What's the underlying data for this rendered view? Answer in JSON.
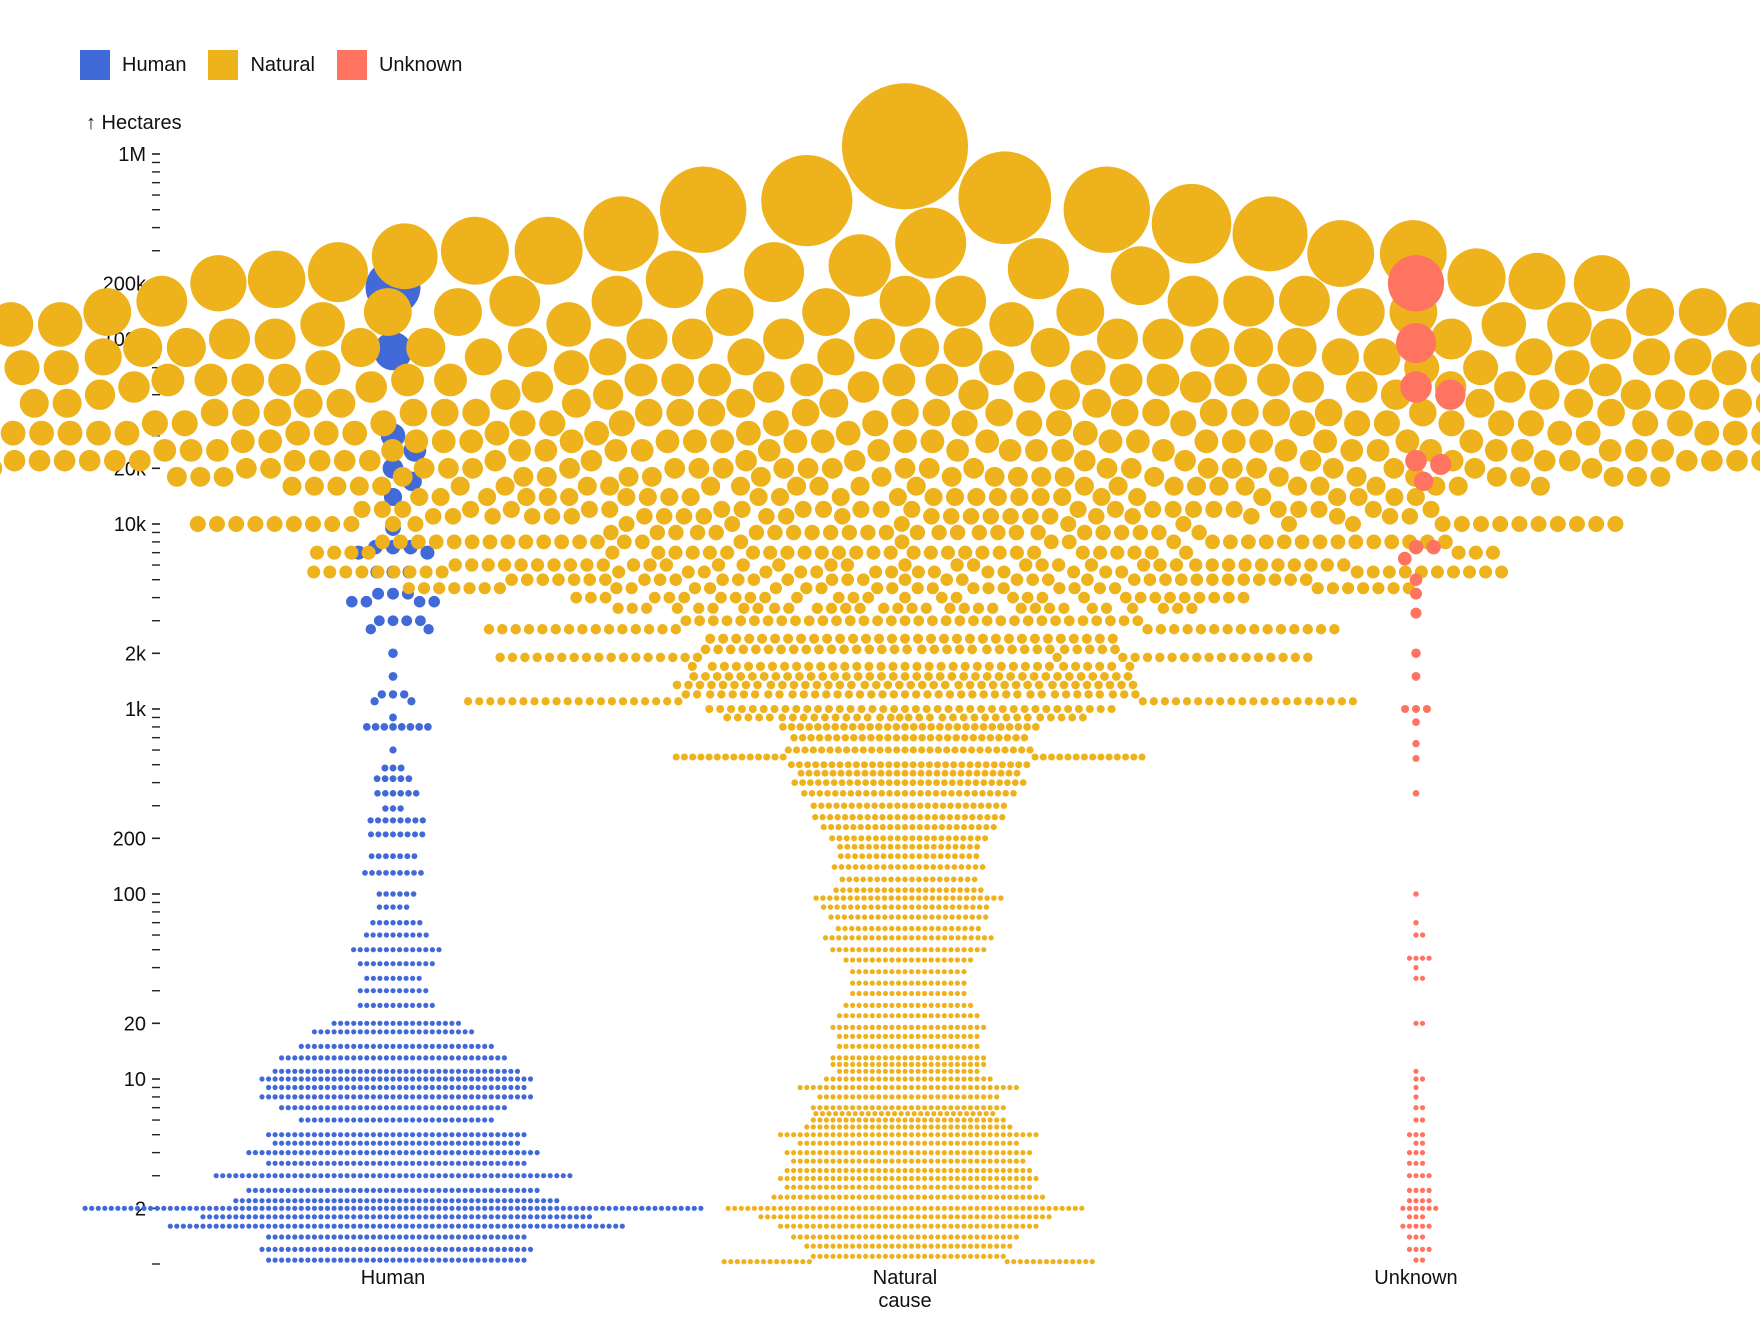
{
  "legend": [
    {
      "label": "Human",
      "color": "#4169D8"
    },
    {
      "label": "Natural",
      "color": "#EDB21C"
    },
    {
      "label": "Unknown",
      "color": "#FF7461"
    }
  ],
  "chart_data": {
    "type": "beeswarm",
    "title": "",
    "ylabel": "↑ Hectares",
    "yscale": "log",
    "ylim": [
      1.0,
      1000000
    ],
    "yticks": [
      {
        "value": 1000000,
        "label": "1M"
      },
      {
        "value": 200000,
        "label": "200k"
      },
      {
        "value": 100000,
        "label": "100k"
      },
      {
        "value": 20000,
        "label": "20k"
      },
      {
        "value": 10000,
        "label": "10k"
      },
      {
        "value": 2000,
        "label": "2k"
      },
      {
        "value": 1000,
        "label": "1k"
      },
      {
        "value": 200,
        "label": "200"
      },
      {
        "value": 100,
        "label": "100"
      },
      {
        "value": 20,
        "label": "20"
      },
      {
        "value": 10,
        "label": "10"
      },
      {
        "value": 2,
        "label": "2"
      }
    ],
    "categories": [
      "Human",
      "Natural cause",
      "Unknown"
    ],
    "category_labels": [
      [
        "Human"
      ],
      [
        "Natural",
        "cause"
      ],
      [
        "Unknown"
      ]
    ],
    "series": [
      {
        "name": "Human",
        "color": "#4169D8",
        "large_fires": [
          190000,
          86000,
          30000,
          25000,
          20000,
          17000,
          14000
        ],
        "distribution": [
          [
            9500,
            1
          ],
          [
            7500,
            3
          ],
          [
            7000,
            2
          ],
          [
            5500,
            3
          ],
          [
            4200,
            3
          ],
          [
            3800,
            4
          ],
          [
            3000,
            4
          ],
          [
            2700,
            2
          ],
          [
            2000,
            1
          ],
          [
            1500,
            1
          ],
          [
            1200,
            3
          ],
          [
            1100,
            2
          ],
          [
            900,
            1
          ],
          [
            800,
            8
          ],
          [
            600,
            1
          ],
          [
            480,
            3
          ],
          [
            420,
            5
          ],
          [
            350,
            6
          ],
          [
            290,
            3
          ],
          [
            250,
            8
          ],
          [
            210,
            8
          ],
          [
            160,
            7
          ],
          [
            130,
            9
          ],
          [
            100,
            6
          ],
          [
            85,
            5
          ],
          [
            70,
            8
          ],
          [
            60,
            10
          ],
          [
            50,
            14
          ],
          [
            42,
            12
          ],
          [
            35,
            9
          ],
          [
            30,
            11
          ],
          [
            25,
            12
          ],
          [
            20,
            20
          ],
          [
            18,
            25
          ],
          [
            15,
            30
          ],
          [
            13,
            35
          ],
          [
            11,
            38
          ],
          [
            10,
            42
          ],
          [
            9,
            40
          ],
          [
            8,
            42
          ],
          [
            7,
            35
          ],
          [
            6,
            30
          ],
          [
            5,
            40
          ],
          [
            4.5,
            38
          ],
          [
            4,
            45
          ],
          [
            3.5,
            40
          ],
          [
            3,
            55
          ],
          [
            2.5,
            45
          ],
          [
            2.2,
            50
          ],
          [
            2,
            95
          ],
          [
            1.8,
            60
          ],
          [
            1.6,
            70
          ],
          [
            1.4,
            40
          ],
          [
            1.2,
            42
          ],
          [
            1.05,
            40
          ]
        ]
      },
      {
        "name": "Natural cause",
        "color": "#EDB21C",
        "large_fires": [
          1100000,
          580000,
          560000,
          500000,
          500000,
          420000,
          370000,
          370000,
          330000,
          300000,
          300000,
          290000,
          290000,
          280000,
          250000,
          240000,
          230000,
          230000,
          220000,
          215000,
          210000,
          210000,
          205000,
          200000,
          200000
        ],
        "distribution": [
          [
            160000,
            8
          ],
          [
            140000,
            10
          ],
          [
            120000,
            10
          ],
          [
            100000,
            12
          ],
          [
            90000,
            14
          ],
          [
            80000,
            16
          ],
          [
            70000,
            18
          ],
          [
            60000,
            19
          ],
          [
            55000,
            16
          ],
          [
            50000,
            20
          ],
          [
            45000,
            18
          ],
          [
            40000,
            21
          ],
          [
            35000,
            20
          ],
          [
            31000,
            23
          ],
          [
            28000,
            22
          ],
          [
            25000,
            24
          ],
          [
            22000,
            26
          ],
          [
            20000,
            32
          ],
          [
            18000,
            28
          ],
          [
            16000,
            27
          ],
          [
            14000,
            28
          ],
          [
            12000,
            26
          ],
          [
            11000,
            26
          ],
          [
            10000,
            28
          ],
          [
            9000,
            26
          ],
          [
            8000,
            34
          ],
          [
            7000,
            36
          ],
          [
            6000,
            38
          ],
          [
            5500,
            34
          ],
          [
            5000,
            36
          ],
          [
            4500,
            32
          ],
          [
            4000,
            30
          ],
          [
            3500,
            32
          ],
          [
            3000,
            34
          ],
          [
            2700,
            30
          ],
          [
            2400,
            32
          ],
          [
            2100,
            33
          ],
          [
            1900,
            34
          ],
          [
            1700,
            36
          ],
          [
            1500,
            38
          ],
          [
            1350,
            40
          ],
          [
            1200,
            40
          ],
          [
            1100,
            40
          ],
          [
            1000,
            38
          ],
          [
            900,
            34
          ],
          [
            800,
            30
          ],
          [
            700,
            28
          ],
          [
            600,
            30
          ],
          [
            550,
            28
          ],
          [
            500,
            30
          ],
          [
            450,
            28
          ],
          [
            400,
            30
          ],
          [
            350,
            28
          ],
          [
            300,
            26
          ],
          [
            260,
            26
          ],
          [
            230,
            24
          ],
          [
            200,
            22
          ],
          [
            180,
            20
          ],
          [
            160,
            20
          ],
          [
            140,
            22
          ],
          [
            120,
            20
          ],
          [
            105,
            22
          ],
          [
            95,
            28
          ],
          [
            85,
            25
          ],
          [
            75,
            24
          ],
          [
            65,
            22
          ],
          [
            58,
            26
          ],
          [
            50,
            24
          ],
          [
            44,
            20
          ],
          [
            38,
            18
          ],
          [
            33,
            18
          ],
          [
            29,
            18
          ],
          [
            25,
            20
          ],
          [
            22,
            22
          ],
          [
            19,
            24
          ],
          [
            17,
            22
          ],
          [
            15,
            22
          ],
          [
            13,
            24
          ],
          [
            12,
            24
          ],
          [
            11,
            22
          ],
          [
            10,
            26
          ],
          [
            9,
            34
          ],
          [
            8,
            28
          ],
          [
            7,
            30
          ],
          [
            6.5,
            28
          ],
          [
            6,
            30
          ],
          [
            5.5,
            32
          ],
          [
            5,
            40
          ],
          [
            4.5,
            34
          ],
          [
            4,
            38
          ],
          [
            3.6,
            36
          ],
          [
            3.2,
            38
          ],
          [
            2.9,
            40
          ],
          [
            2.6,
            38
          ],
          [
            2.3,
            42
          ],
          [
            2,
            55
          ],
          [
            1.8,
            45
          ],
          [
            1.6,
            40
          ],
          [
            1.4,
            35
          ],
          [
            1.25,
            32
          ],
          [
            1.1,
            30
          ],
          [
            1.03,
            28
          ]
        ]
      },
      {
        "name": "Unknown",
        "color": "#FF7461",
        "large_fires": [
          200000,
          95000,
          55000,
          50000,
          22000,
          21000,
          17000
        ],
        "distribution": [
          [
            7500,
            2
          ],
          [
            6500,
            1
          ],
          [
            5000,
            1
          ],
          [
            4200,
            1
          ],
          [
            3300,
            1
          ],
          [
            2000,
            1
          ],
          [
            1500,
            1
          ],
          [
            1000,
            3
          ],
          [
            850,
            1
          ],
          [
            650,
            1
          ],
          [
            540,
            1
          ],
          [
            350,
            1
          ],
          [
            100,
            1
          ],
          [
            70,
            1
          ],
          [
            60,
            2
          ],
          [
            45,
            4
          ],
          [
            40,
            1
          ],
          [
            35,
            2
          ],
          [
            20,
            2
          ],
          [
            11,
            1
          ],
          [
            10,
            2
          ],
          [
            9,
            1
          ],
          [
            8,
            1
          ],
          [
            7,
            2
          ],
          [
            6,
            2
          ],
          [
            5,
            3
          ],
          [
            4.5,
            2
          ],
          [
            4,
            3
          ],
          [
            3.5,
            3
          ],
          [
            3,
            4
          ],
          [
            2.5,
            4
          ],
          [
            2.2,
            4
          ],
          [
            2,
            6
          ],
          [
            1.8,
            3
          ],
          [
            1.6,
            5
          ],
          [
            1.4,
            3
          ],
          [
            1.2,
            4
          ],
          [
            1.05,
            2
          ]
        ]
      }
    ]
  }
}
